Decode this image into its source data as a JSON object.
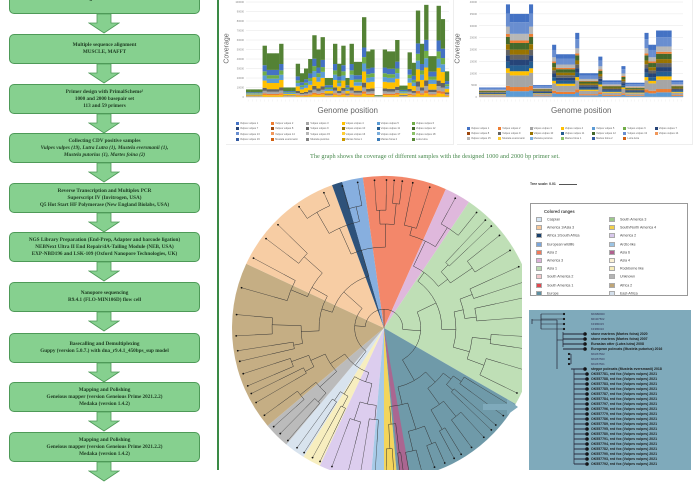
{
  "flowchart": {
    "steps": [
      {
        "title": "Length: >14 000 base",
        "lines": []
      },
      {
        "title": "Multiple sequence alignment",
        "lines": [
          "MUSCLE, MAFFT"
        ]
      },
      {
        "title": "Primer design with PrimalScheme¹",
        "lines": [
          "1000 and 2000 basepair set",
          "113 and 59 primers"
        ]
      },
      {
        "title": "Collecting CDV positive samples",
        "lines": [
          "Vulpes vulpes (19), Lutra Lutra (1), Mustela eversmanii (1),",
          "Mustela putorius (1), Martes foina (2)"
        ]
      },
      {
        "title": "Reverse Transcription and Multiplex PCR",
        "lines": [
          "Superscript IV (Invitrogen, USA)",
          "Q5 Hot Start HF Polymerase (New England Biolabs, USA)"
        ]
      },
      {
        "title": "NGS Library Preparation (End-Prep, Adapter and barcode ligation)",
        "lines": [
          "NEBNext Ultra II End Repair/dA-Tailing Module (NEB, USA)",
          "EXP-NBD196 and LSK-109 (Oxford Nanopore Technologies, UK)"
        ]
      },
      {
        "title": "Nanopore sequencing",
        "lines": [
          "R9.4.1 (FLO-MIN106D) flow cell"
        ]
      },
      {
        "title": "Basecalling and Demultiplexing",
        "lines": [
          "Guppy (version 5.0.7.) with dna_r9.4.1_450bps_sup model"
        ]
      },
      {
        "title": "Mapping and Polishing",
        "lines": [
          "Geneious mapper (version Geneious Prime 2021.2.2)",
          "Medaka (version 1.4.2)"
        ]
      },
      {
        "title": "Mapping and Polishing",
        "lines": [
          "Geneious mapper (version Geneious Prime 2021.2.2)",
          "Medaka (version 1.4.2)"
        ]
      }
    ],
    "box_color": "#86d08f",
    "arrow_color": "#86d08f"
  },
  "caption": "The graph shows the coverage of different samples with the designed 1000 and 2000 bp primer set.",
  "chart_data": [
    {
      "type": "bar",
      "stacked": true,
      "xlabel": "Genome position",
      "ylabel": "Coverage",
      "ylim": [
        0,
        100000
      ],
      "grid": true,
      "legend_placement": "bottom",
      "values": [
        8000,
        8000,
        8000,
        8000,
        54000,
        46000,
        46000,
        46000,
        56000,
        10000,
        10000,
        10000,
        35000,
        25000,
        30000,
        40000,
        65000,
        50000,
        63000,
        20000,
        20000,
        56000,
        35000,
        54000,
        20000,
        56000,
        37000,
        37000,
        84000,
        48000,
        50000,
        2000,
        2000,
        50000,
        48000,
        48000,
        60000,
        12000,
        12000,
        47000,
        36000,
        91000,
        56000,
        97000,
        43000,
        43000,
        96000,
        82000,
        27000
      ],
      "series": [
        "Vulpes vulpes 1",
        "Vulpes vulpes 2",
        "Vulpes vulpes 3",
        "Vulpes vulpes 4",
        "Vulpes vulpes 5",
        "Vulpes vulpes 6",
        "Vulpes vulpes 7",
        "Vulpes vulpes 8",
        "Vulpes vulpes 9",
        "Vulpes vulpes 10",
        "Vulpes vulpes 11",
        "Vulpes vulpes 12",
        "Vulpes vulpes 13",
        "Vulpes vulpes 14",
        "Vulpes vulpes 15",
        "Vulpes vulpes 16",
        "Vulpes vulpes 17",
        "Vulpes vulpes 18",
        "Vulpes vulpes 19",
        "Mustela eversmanii",
        "Mustela putorius",
        "Martes foina 1",
        "Martes foina 2",
        "Lutra lutra"
      ]
    },
    {
      "type": "bar",
      "stacked": true,
      "xlabel": "Genome position",
      "ylabel": "Coverage",
      "ylim": [
        0,
        40000
      ],
      "grid": true,
      "legend_placement": "bottom",
      "values": [
        4000,
        4000,
        4000,
        4000,
        4000,
        4000,
        4000,
        39000,
        35000,
        35000,
        35000,
        35000,
        35000,
        39000,
        5000,
        5000,
        5000,
        5000,
        5000,
        22000,
        18000,
        18000,
        18000,
        18000,
        18000,
        27000,
        10000,
        10000,
        10000,
        10000,
        10000,
        17000,
        7000,
        7000,
        7000,
        7000,
        7000,
        13000,
        6000,
        6000,
        6000,
        6000,
        6000,
        27000,
        22000,
        22000,
        28000,
        28000,
        28000,
        28000,
        7000,
        7000,
        7000
      ],
      "series": [
        "Vulpes vulpes 1",
        "Vulpes vulpes 2",
        "Vulpes vulpes 3",
        "Vulpes vulpes 4",
        "Vulpes vulpes 5",
        "Vulpes vulpes 6",
        "Vulpes vulpes 7",
        "Vulpes vulpes 8",
        "Vulpes vulpes 9",
        "Vulpes vulpes 10",
        "Vulpes vulpes 11",
        "Vulpes vulpes 12",
        "Vulpes vulpes 13",
        "Vulpes vulpes 14",
        "Vulpes vulpes 15",
        "Mustela eversmanii",
        "Mustela putorius",
        "Martes foina 1",
        "Martes foina 2",
        "Lutra lutra"
      ]
    }
  ],
  "tree": {
    "scale_label": "Tree scale: 0.01",
    "legend_title": "Colored ranges",
    "colored_ranges": [
      {
        "name": "Caspian",
        "color": "#d6e6f4"
      },
      {
        "name": "America 1/Asia 3",
        "color": "#f6c89a"
      },
      {
        "name": "Africa 1/South Africa",
        "color": "#173f6b"
      },
      {
        "name": "European wildlife",
        "color": "#7aa6dc"
      },
      {
        "name": "Asia 2",
        "color": "#f27a5a"
      },
      {
        "name": "America 3",
        "color": "#dcb0d8"
      },
      {
        "name": "Asia 1",
        "color": "#b8dcae"
      },
      {
        "name": "South America 2",
        "color": "#f4c8cc"
      },
      {
        "name": "South America 1",
        "color": "#e0474f"
      },
      {
        "name": "Europe",
        "color": "#5f8fa0"
      },
      {
        "name": "South America 3",
        "color": "#9cc98a"
      },
      {
        "name": "South/North America 4",
        "color": "#f2d04a"
      },
      {
        "name": "America 2",
        "color": "#d8c8ec"
      },
      {
        "name": "Arctic-like",
        "color": "#9cc4e4"
      },
      {
        "name": "Asia 6",
        "color": "#b0608e"
      },
      {
        "name": "Asia 4",
        "color": "#fbf1d4"
      },
      {
        "name": "Rockborne like",
        "color": "#f6ecb8"
      },
      {
        "name": "Unknown",
        "color": "#b4b4b4"
      },
      {
        "name": "Africa 2",
        "color": "#bfa577"
      },
      {
        "name": "East-Africa",
        "color": "#d4e0ec"
      }
    ],
    "inset_background": "#7faabb",
    "inset_labels": [
      {
        "text": "MN980900",
        "bold": false
      },
      {
        "text": "MF407502",
        "bold": false
      },
      {
        "text": "KF380015",
        "bold": false
      },
      {
        "text": "KF380016",
        "bold": false
      },
      {
        "text": "stone martens (Martes foina) 2020",
        "bold": true
      },
      {
        "text": "stone martens (Martes foina) 2007",
        "bold": true
      },
      {
        "text": "Eurasian otter (Lutra lutra) 2008",
        "bold": true
      },
      {
        "text": "European polecats (Mustela putorius) 2016",
        "bold": true
      },
      {
        "text": "MN267502",
        "bold": false
      },
      {
        "text": "MN267500",
        "bold": false
      },
      {
        "text": "MN267501",
        "bold": false
      },
      {
        "text": "steppe polecats (Mustela eversmanii) 2018",
        "bold": true
      },
      {
        "text": "OK557781, red fox (Vulpes vulpes) 2021",
        "bold": true
      },
      {
        "text": "OK557788, red fox (Vulpes vulpes) 2021",
        "bold": true
      },
      {
        "text": "OK557783, red fox (Vulpes vulpes) 2021",
        "bold": true
      },
      {
        "text": "OK557785, red fox (Vulpes vulpes) 2021",
        "bold": true
      },
      {
        "text": "OK557787, red fox (Vulpes vulpes) 2021",
        "bold": true
      },
      {
        "text": "OK557784, red fox (Vulpes vulpes) 2021",
        "bold": true
      },
      {
        "text": "OK557797, red fox (Vulpes vulpes) 2021",
        "bold": true
      },
      {
        "text": "OK557796, red fox (Vulpes vulpes) 2021",
        "bold": true
      },
      {
        "text": "OK557779, red fox (Vulpes vulpes) 2021",
        "bold": true
      },
      {
        "text": "OK557786, red fox (Vulpes vulpes) 2021",
        "bold": true
      },
      {
        "text": "OK557789, red fox (Vulpes vulpes) 2021",
        "bold": true
      },
      {
        "text": "OK557795, red fox (Vulpes vulpes) 2021",
        "bold": true
      },
      {
        "text": "OK557780, red fox (Vulpes vulpes) 2021",
        "bold": true
      },
      {
        "text": "OK557791, red fox (Vulpes vulpes) 2021",
        "bold": true
      },
      {
        "text": "OK557794, red fox (Vulpes vulpes) 2021",
        "bold": true
      },
      {
        "text": "OK557782, red fox (Vulpes vulpes) 2021",
        "bold": true
      },
      {
        "text": "OK557790, red fox (Vulpes vulpes) 2021",
        "bold": true
      },
      {
        "text": "OK557793, red fox (Vulpes vulpes) 2021",
        "bold": true
      },
      {
        "text": "OK557792, red fox (Vulpes vulpes) 2021",
        "bold": true
      }
    ]
  }
}
